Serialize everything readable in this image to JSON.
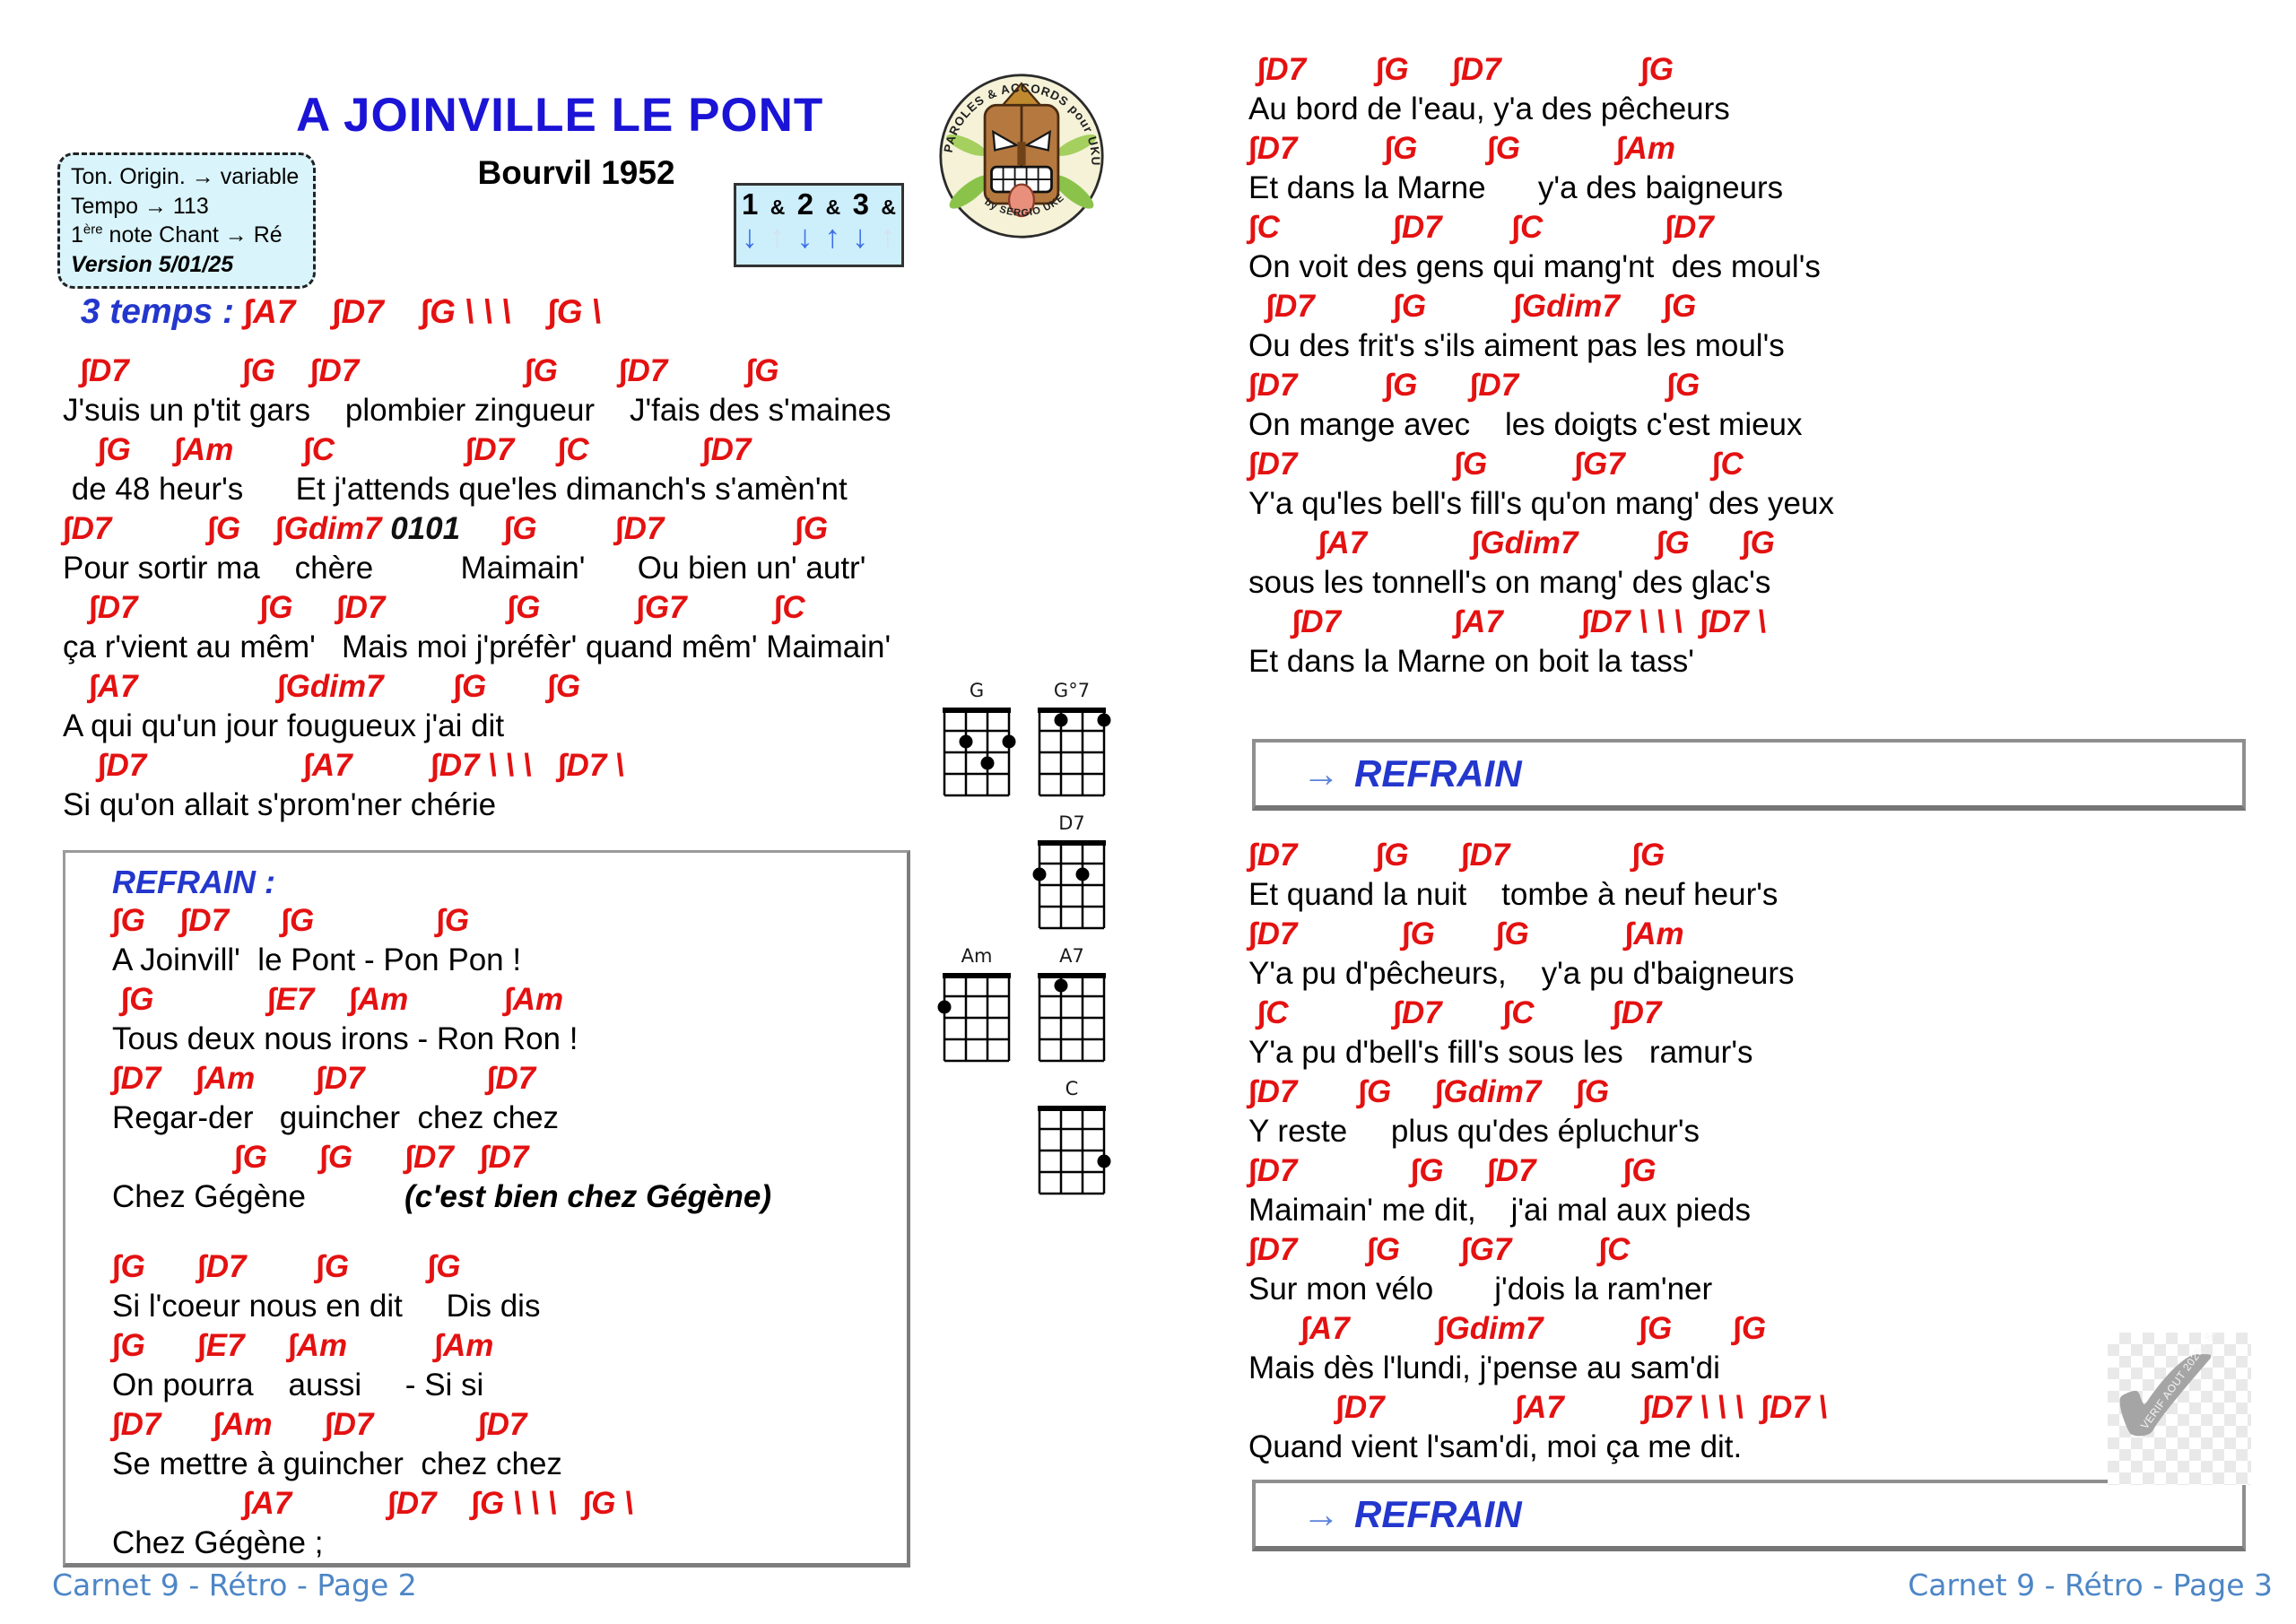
{
  "colors": {
    "chord": "#e41111",
    "title": "#1b14d6",
    "label": "#2337cd",
    "footer": "#4d86c6",
    "info_bg": "#d9f4fa",
    "rhythm_bg": "#cdeefb"
  },
  "left": {
    "title": "A JOINVILLE LE PONT",
    "subtitle": "Bourvil 1952",
    "info": {
      "l1": "Ton. Origin. → variable",
      "l2": "Tempo → 113",
      "l3_pre": "1",
      "l3_sup": "ère",
      "l3_post": " note Chant → Ré",
      "l4": "Version 5/01/25"
    },
    "rhythm": {
      "counts": [
        "1",
        "&",
        "2",
        "&",
        "3",
        "&"
      ],
      "arrows": [
        "↓",
        "↑",
        "↓",
        "↑",
        "↓",
        "↑"
      ],
      "arrows_faint": [
        false,
        true,
        false,
        false,
        false,
        true
      ]
    },
    "logo": {
      "arc_top": "PAROLES & ACCORDS pour UKULELE",
      "arc_bottom": "by SERGIO UKE"
    },
    "intro_label": "3 temps : ",
    "intro_chords": "∫A7    ∫D7    ∫G \\ \\ \\    ∫G \\",
    "verse": {
      "l1c": "  ∫D7             ∫G    ∫D7                   ∫G       ∫D7         ∫G",
      "l1l": "J'suis un p'tit gars    plombier zingueur    J'fais des s'maines",
      "l2c": "    ∫G     ∫Am        ∫C               ∫D7     ∫C             ∫D7",
      "l2l": " de 48 heur's      Et j'attends que'les dimanch's s'amèn'nt",
      "l3c1": "∫D7           ∫G    ∫Gdim7 ",
      "l3f": "0101",
      "l3c2": "     ∫G         ∫D7               ∫G",
      "l3l": "Pour sortir ma    chère          Maimain'      Ou bien un' autr'",
      "l4c": "   ∫D7              ∫G     ∫D7              ∫G           ∫G7          ∫C",
      "l4l": "ça r'vient au mêm'   Mais moi j'préfèr' quand mêm' Maimain'",
      "l5c": "   ∫A7                ∫Gdim7        ∫G       ∫G",
      "l5l": "A qui qu'un jour fougueux j'ai dit",
      "l6c": "    ∫D7                  ∫A7         ∫D7 \\ \\ \\   ∫D7 \\",
      "l6l": "Si qu'on allait s'prom'ner chérie"
    },
    "refrain": {
      "label": "REFRAIN :",
      "r1c": "∫G    ∫D7      ∫G              ∫G",
      "r1l": "A Joinvill'  le Pont - Pon Pon !",
      "r2c": " ∫G             ∫E7    ∫Am           ∫Am",
      "r2l": "Tous deux nous irons - Ron Ron !",
      "r3c": "∫D7    ∫Am       ∫D7              ∫D7",
      "r3l": "Regar-der   guincher  chez chez",
      "r4c": "              ∫G      ∫G      ∫D7   ∫D7",
      "r4l": "Chez Gégène",
      "r4note": "(c'est bien chez Gégène)",
      "r5c": "∫G      ∫D7        ∫G         ∫G",
      "r5l": "Si l'coeur nous en dit     Dis dis",
      "r6c": "∫G      ∫E7     ∫Am          ∫Am",
      "r6l": "On pourra    aussi     - Si si",
      "r7c": "∫D7      ∫Am      ∫D7            ∫D7",
      "r7l": "Se mettre à guincher  chez chez",
      "r8c": "               ∫A7           ∫D7    ∫G \\ \\ \\   ∫G \\",
      "r8l": "Chez Gégène ;"
    },
    "footer": "Carnet 9 - Rétro - Page 2"
  },
  "diagrams": {
    "g": {
      "label": "G",
      "dots": [
        [
          2,
          2
        ],
        [
          4,
          2
        ],
        [
          3,
          3
        ]
      ]
    },
    "gdim7": {
      "label": "G°7",
      "dots": [
        [
          2,
          1
        ],
        [
          4,
          1
        ]
      ]
    },
    "d7": {
      "label": "D7",
      "dots": [
        [
          1,
          2
        ],
        [
          3,
          2
        ]
      ]
    },
    "am": {
      "label": "Am",
      "dots": [
        [
          1,
          2
        ]
      ]
    },
    "a7": {
      "label": "A7",
      "dots": [
        [
          2,
          1
        ]
      ]
    },
    "c": {
      "label": "C",
      "dots": [
        [
          4,
          3
        ]
      ]
    }
  },
  "right": {
    "v2": {
      "l1c": " ∫D7        ∫G     ∫D7                ∫G",
      "l1l": "Au bord de l'eau, y'a des pêcheurs",
      "l2c": "∫D7          ∫G        ∫G           ∫Am",
      "l2l": "Et dans la Marne      y'a des baigneurs",
      "l3c": "∫C             ∫D7        ∫C              ∫D7",
      "l3l": "On voit des gens qui mang'nt  des moul's",
      "l4c": "  ∫D7         ∫G          ∫Gdim7     ∫G",
      "l4l": "Ou des frit's s'ils aiment pas les moul's",
      "l5c": "∫D7          ∫G      ∫D7                 ∫G",
      "l5l": "On mange avec    les doigts c'est mieux",
      "l6c": "∫D7                  ∫G          ∫G7          ∫C",
      "l6l": "Y'a qu'les bell's fill's qu'on mang' des yeux",
      "l7c": "        ∫A7            ∫Gdim7         ∫G      ∫G",
      "l7l": "sous les tonnell's on mang' des glac's",
      "l8c": "     ∫D7             ∫A7         ∫D7 \\ \\ \\  ∫D7 \\",
      "l8l": "Et dans la Marne on boit la tass'"
    },
    "refrain_link1": {
      "arrow": "→",
      "label": "REFRAIN"
    },
    "v3": {
      "l1c": "∫D7         ∫G      ∫D7              ∫G",
      "l1l": "Et quand la nuit    tombe à neuf heur's",
      "l2c": "∫D7            ∫G       ∫G           ∫Am",
      "l2l": "Y'a pu d'pêcheurs,    y'a pu d'baigneurs",
      "l3c": " ∫C            ∫D7       ∫C         ∫D7",
      "l3l": "Y'a pu d'bell's fill's sous les   ramur's",
      "l4c": "∫D7       ∫G     ∫Gdim7    ∫G",
      "l4l": "Y reste     plus qu'des épluchur's",
      "l5c": "∫D7             ∫G     ∫D7          ∫G",
      "l5l": "Maimain' me dit,    j'ai mal aux pieds",
      "l6c": "∫D7        ∫G       ∫G7          ∫C",
      "l6l": "Sur mon vélo       j'dois la ram'ner",
      "l7c": "      ∫A7          ∫Gdim7           ∫G       ∫G",
      "l7l": "Mais dès l'lundi, j'pense au sam'di",
      "l8c": "          ∫D7               ∫A7         ∫D7 \\ \\ \\  ∫D7 \\",
      "l8l": "Quand vient l'sam'di, moi ça me dit."
    },
    "refrain_link2": {
      "arrow": "→",
      "label": "REFRAIN"
    },
    "check_watermark": "VERIF AOUT 2025 - Sergio-Uke.fr",
    "check_glyph": "✔",
    "footer": "Carnet 9 - Rétro - Page 3"
  }
}
